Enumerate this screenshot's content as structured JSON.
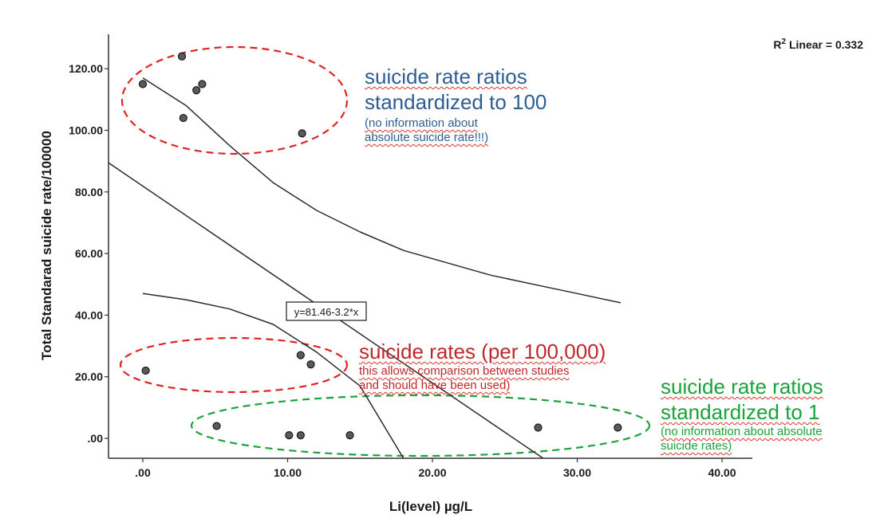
{
  "chart_data": {
    "type": "scatter",
    "xlabel": "Li(level) µg/L",
    "ylabel": "Total Standarad suicide rate/100000",
    "xlim": [
      -2.5,
      42
    ],
    "ylim": [
      -7,
      133
    ],
    "x_ticks": [
      0,
      10,
      20,
      30,
      40
    ],
    "x_tick_labels": [
      ".00",
      "10.00",
      "20.00",
      "30.00",
      "40.00"
    ],
    "y_ticks": [
      0,
      20,
      40,
      60,
      80,
      100,
      120
    ],
    "y_tick_labels": [
      ".00",
      "20.00",
      "40.00",
      "60.00",
      "80.00",
      "100.00",
      "120.00"
    ],
    "grid": false,
    "points": [
      {
        "x": 0.0,
        "y": 115
      },
      {
        "x": 2.7,
        "y": 124
      },
      {
        "x": 2.8,
        "y": 104
      },
      {
        "x": 3.7,
        "y": 113
      },
      {
        "x": 4.1,
        "y": 115
      },
      {
        "x": 11.0,
        "y": 99
      },
      {
        "x": 0.2,
        "y": 22
      },
      {
        "x": 10.9,
        "y": 27
      },
      {
        "x": 11.6,
        "y": 24
      },
      {
        "x": 5.1,
        "y": 4
      },
      {
        "x": 10.1,
        "y": 1
      },
      {
        "x": 10.9,
        "y": 1
      },
      {
        "x": 14.3,
        "y": 1
      },
      {
        "x": 27.3,
        "y": 3.5
      },
      {
        "x": 32.8,
        "y": 3.5
      }
    ],
    "fit": {
      "label": "y=81.46-3.2*x",
      "r2_label": "R",
      "r2_sup": "2",
      "r2_rest": " Linear = 0.332",
      "intercept": 81.46,
      "slope": -3.2
    },
    "confidence_upper": [
      [
        0.0,
        117
      ],
      [
        3,
        108
      ],
      [
        6,
        95
      ],
      [
        9,
        83
      ],
      [
        12,
        74
      ],
      [
        15,
        67
      ],
      [
        18,
        61
      ],
      [
        21,
        57
      ],
      [
        24,
        53
      ],
      [
        27,
        50
      ],
      [
        30,
        47
      ],
      [
        33,
        44
      ]
    ],
    "confidence_lower": [
      [
        0.0,
        47
      ],
      [
        3,
        45
      ],
      [
        6,
        42
      ],
      [
        9,
        37
      ],
      [
        12,
        28
      ],
      [
        15,
        17
      ],
      [
        18,
        -7
      ]
    ]
  },
  "annotations": {
    "blue": {
      "line1": "suicide rate ratios",
      "line2": "standardized to 100",
      "sub1": "(no information about",
      "sub2": "absolute suicide rate!!!)",
      "color": "#2e5d94"
    },
    "red": {
      "line1": "suicide rates (per 100,000)",
      "sub1": "this allows comparison between studies",
      "sub2": "and should have been used)",
      "color": "#c0262b"
    },
    "green": {
      "line1": "suicide rate ratios",
      "line2": "standardized to 1",
      "sub1": "(no information about absolute",
      "sub2": "suicide rates)",
      "color": "#1aa33a"
    }
  }
}
